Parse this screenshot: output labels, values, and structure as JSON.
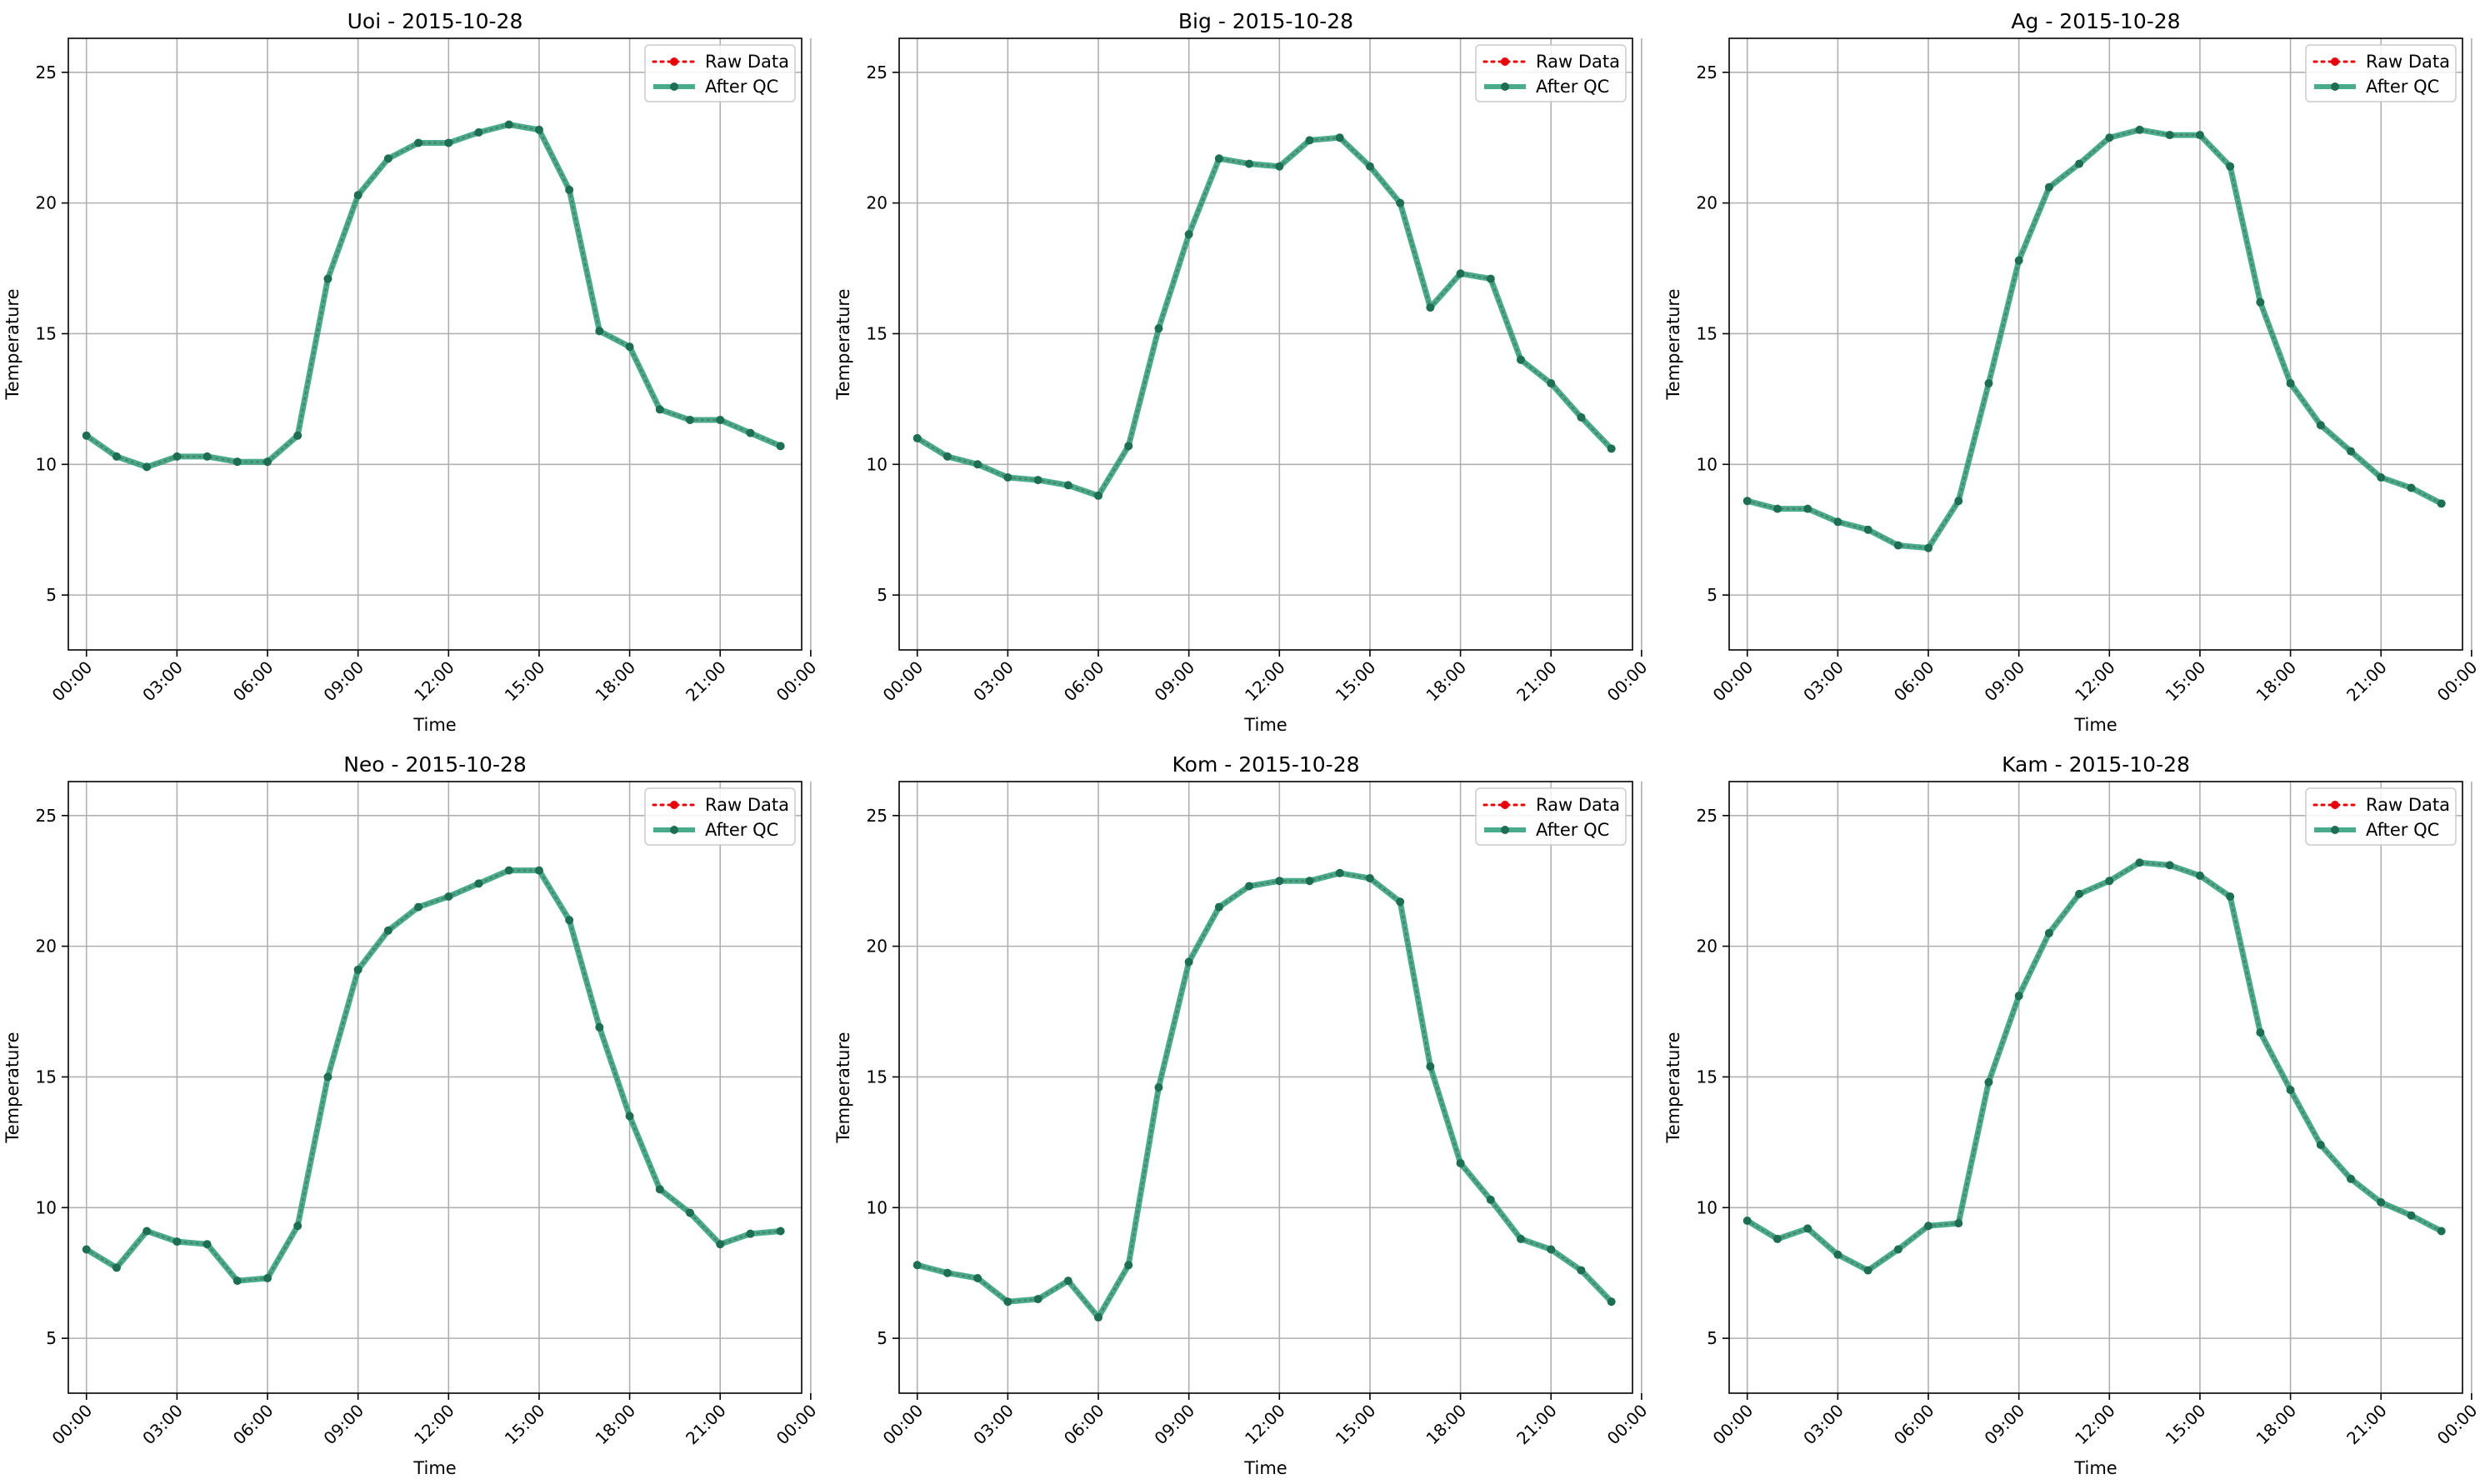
{
  "figure": {
    "colors": {
      "raw": "#e8000b",
      "after_qc": "#2a9d78",
      "marker": "#1d6e52",
      "grid": "#b0b0b0"
    }
  },
  "chart_data": [
    {
      "type": "line",
      "title": "Uoi - 2015-10-28",
      "xlabel": "Time",
      "ylabel": "Temperature",
      "ylim": [
        2.9,
        26.3
      ],
      "xlim": [
        -0.6,
        23.7
      ],
      "y_ticks": [
        5,
        10,
        15,
        20,
        25
      ],
      "x_ticks": [
        "00:00",
        "03:00",
        "06:00",
        "09:00",
        "12:00",
        "15:00",
        "18:00",
        "21:00",
        "00:00"
      ],
      "grid": true,
      "legend_position": "top-right",
      "x": [
        "00:00",
        "01:00",
        "02:00",
        "03:00",
        "04:00",
        "05:00",
        "06:00",
        "07:00",
        "08:00",
        "09:00",
        "10:00",
        "11:00",
        "12:00",
        "13:00",
        "14:00",
        "15:00",
        "16:00",
        "17:00",
        "18:00",
        "19:00",
        "20:00",
        "21:00",
        "22:00",
        "23:00"
      ],
      "series": [
        {
          "name": "Raw Data",
          "style": "dotted-marker",
          "values": [
            11.1,
            10.3,
            9.9,
            10.3,
            10.3,
            10.1,
            10.1,
            11.1,
            17.1,
            20.3,
            21.7,
            22.3,
            22.3,
            22.7,
            23.0,
            22.8,
            20.5,
            15.1,
            14.5,
            12.1,
            11.7,
            11.7,
            11.2,
            10.7
          ]
        },
        {
          "name": "After QC",
          "style": "solid-marker",
          "values": [
            11.1,
            10.3,
            9.9,
            10.3,
            10.3,
            10.1,
            10.1,
            11.1,
            17.1,
            20.3,
            21.7,
            22.3,
            22.3,
            22.7,
            23.0,
            22.8,
            20.5,
            15.1,
            14.5,
            12.1,
            11.7,
            11.7,
            11.2,
            10.7
          ]
        }
      ]
    },
    {
      "type": "line",
      "title": "Big - 2015-10-28",
      "xlabel": "Time",
      "ylabel": "Temperature",
      "ylim": [
        2.9,
        26.3
      ],
      "xlim": [
        -0.6,
        23.7
      ],
      "y_ticks": [
        5,
        10,
        15,
        20,
        25
      ],
      "x_ticks": [
        "00:00",
        "03:00",
        "06:00",
        "09:00",
        "12:00",
        "15:00",
        "18:00",
        "21:00",
        "00:00"
      ],
      "grid": true,
      "legend_position": "top-right",
      "x": [
        "00:00",
        "01:00",
        "02:00",
        "03:00",
        "04:00",
        "05:00",
        "06:00",
        "07:00",
        "08:00",
        "09:00",
        "10:00",
        "11:00",
        "12:00",
        "13:00",
        "14:00",
        "15:00",
        "16:00",
        "17:00",
        "18:00",
        "19:00",
        "20:00",
        "21:00",
        "22:00",
        "23:00"
      ],
      "series": [
        {
          "name": "Raw Data",
          "style": "dotted-marker",
          "values": [
            11.0,
            10.3,
            10.0,
            9.5,
            9.4,
            9.2,
            8.8,
            10.7,
            15.2,
            18.8,
            21.7,
            21.5,
            21.4,
            22.4,
            22.5,
            21.4,
            20.0,
            16.0,
            17.3,
            17.1,
            14.0,
            13.1,
            11.8,
            10.6
          ]
        },
        {
          "name": "After QC",
          "style": "solid-marker",
          "values": [
            11.0,
            10.3,
            10.0,
            9.5,
            9.4,
            9.2,
            8.8,
            10.7,
            15.2,
            18.8,
            21.7,
            21.5,
            21.4,
            22.4,
            22.5,
            21.4,
            20.0,
            16.0,
            17.3,
            17.1,
            14.0,
            13.1,
            11.8,
            10.6
          ]
        }
      ]
    },
    {
      "type": "line",
      "title": "Ag - 2015-10-28",
      "xlabel": "Time",
      "ylabel": "Temperature",
      "ylim": [
        2.9,
        26.3
      ],
      "xlim": [
        -0.6,
        23.7
      ],
      "y_ticks": [
        5,
        10,
        15,
        20,
        25
      ],
      "x_ticks": [
        "00:00",
        "03:00",
        "06:00",
        "09:00",
        "12:00",
        "15:00",
        "18:00",
        "21:00",
        "00:00"
      ],
      "grid": true,
      "legend_position": "top-right",
      "x": [
        "00:00",
        "01:00",
        "02:00",
        "03:00",
        "04:00",
        "05:00",
        "06:00",
        "07:00",
        "08:00",
        "09:00",
        "10:00",
        "11:00",
        "12:00",
        "13:00",
        "14:00",
        "15:00",
        "16:00",
        "17:00",
        "18:00",
        "19:00",
        "20:00",
        "21:00",
        "22:00",
        "23:00"
      ],
      "series": [
        {
          "name": "Raw Data",
          "style": "dotted-marker",
          "values": [
            8.6,
            8.3,
            8.3,
            7.8,
            7.5,
            6.9,
            6.8,
            8.6,
            13.1,
            17.8,
            20.6,
            21.5,
            22.5,
            22.8,
            22.6,
            22.6,
            21.4,
            16.2,
            13.1,
            11.5,
            10.5,
            9.5,
            9.1,
            8.5
          ]
        },
        {
          "name": "After QC",
          "style": "solid-marker",
          "values": [
            8.6,
            8.3,
            8.3,
            7.8,
            7.5,
            6.9,
            6.8,
            8.6,
            13.1,
            17.8,
            20.6,
            21.5,
            22.5,
            22.8,
            22.6,
            22.6,
            21.4,
            16.2,
            13.1,
            11.5,
            10.5,
            9.5,
            9.1,
            8.5
          ]
        }
      ]
    },
    {
      "type": "line",
      "title": "Neo - 2015-10-28",
      "xlabel": "Time",
      "ylabel": "Temperature",
      "ylim": [
        2.9,
        26.3
      ],
      "xlim": [
        -0.6,
        23.7
      ],
      "y_ticks": [
        5,
        10,
        15,
        20,
        25
      ],
      "x_ticks": [
        "00:00",
        "03:00",
        "06:00",
        "09:00",
        "12:00",
        "15:00",
        "18:00",
        "21:00",
        "00:00"
      ],
      "grid": true,
      "legend_position": "top-right",
      "x": [
        "00:00",
        "01:00",
        "02:00",
        "03:00",
        "04:00",
        "05:00",
        "06:00",
        "07:00",
        "08:00",
        "09:00",
        "10:00",
        "11:00",
        "12:00",
        "13:00",
        "14:00",
        "15:00",
        "16:00",
        "17:00",
        "18:00",
        "19:00",
        "20:00",
        "21:00",
        "22:00",
        "23:00"
      ],
      "series": [
        {
          "name": "Raw Data",
          "style": "dotted-marker",
          "values": [
            8.4,
            7.7,
            9.1,
            8.7,
            8.6,
            7.2,
            7.3,
            9.3,
            15.0,
            19.1,
            20.6,
            21.5,
            21.9,
            22.4,
            22.9,
            22.9,
            21.0,
            16.9,
            13.5,
            10.7,
            9.8,
            8.6,
            9.0,
            9.1
          ]
        },
        {
          "name": "After QC",
          "style": "solid-marker",
          "values": [
            8.4,
            7.7,
            9.1,
            8.7,
            8.6,
            7.2,
            7.3,
            9.3,
            15.0,
            19.1,
            20.6,
            21.5,
            21.9,
            22.4,
            22.9,
            22.9,
            21.0,
            16.9,
            13.5,
            10.7,
            9.8,
            8.6,
            9.0,
            9.1
          ]
        }
      ]
    },
    {
      "type": "line",
      "title": "Kom - 2015-10-28",
      "xlabel": "Time",
      "ylabel": "Temperature",
      "ylim": [
        2.9,
        26.3
      ],
      "xlim": [
        -0.6,
        23.7
      ],
      "y_ticks": [
        5,
        10,
        15,
        20,
        25
      ],
      "x_ticks": [
        "00:00",
        "03:00",
        "06:00",
        "09:00",
        "12:00",
        "15:00",
        "18:00",
        "21:00",
        "00:00"
      ],
      "grid": true,
      "legend_position": "top-right",
      "x": [
        "00:00",
        "01:00",
        "02:00",
        "03:00",
        "04:00",
        "05:00",
        "06:00",
        "07:00",
        "08:00",
        "09:00",
        "10:00",
        "11:00",
        "12:00",
        "13:00",
        "14:00",
        "15:00",
        "16:00",
        "17:00",
        "18:00",
        "19:00",
        "20:00",
        "21:00",
        "22:00",
        "23:00"
      ],
      "series": [
        {
          "name": "Raw Data",
          "style": "dotted-marker",
          "values": [
            7.8,
            7.5,
            7.3,
            6.4,
            6.5,
            7.2,
            5.8,
            7.8,
            14.6,
            19.4,
            21.5,
            22.3,
            22.5,
            22.5,
            22.8,
            22.6,
            21.7,
            15.4,
            11.7,
            10.3,
            8.8,
            8.4,
            7.6,
            6.4
          ]
        },
        {
          "name": "After QC",
          "style": "solid-marker",
          "values": [
            7.8,
            7.5,
            7.3,
            6.4,
            6.5,
            7.2,
            5.8,
            7.8,
            14.6,
            19.4,
            21.5,
            22.3,
            22.5,
            22.5,
            22.8,
            22.6,
            21.7,
            15.4,
            11.7,
            10.3,
            8.8,
            8.4,
            7.6,
            6.4
          ]
        }
      ]
    },
    {
      "type": "line",
      "title": "Kam - 2015-10-28",
      "xlabel": "Time",
      "ylabel": "Temperature",
      "ylim": [
        2.9,
        26.3
      ],
      "xlim": [
        -0.6,
        23.7
      ],
      "y_ticks": [
        5,
        10,
        15,
        20,
        25
      ],
      "x_ticks": [
        "00:00",
        "03:00",
        "06:00",
        "09:00",
        "12:00",
        "15:00",
        "18:00",
        "21:00",
        "00:00"
      ],
      "grid": true,
      "legend_position": "top-right",
      "x": [
        "00:00",
        "01:00",
        "02:00",
        "03:00",
        "04:00",
        "05:00",
        "06:00",
        "07:00",
        "08:00",
        "09:00",
        "10:00",
        "11:00",
        "12:00",
        "13:00",
        "14:00",
        "15:00",
        "16:00",
        "17:00",
        "18:00",
        "19:00",
        "20:00",
        "21:00",
        "22:00",
        "23:00"
      ],
      "series": [
        {
          "name": "Raw Data",
          "style": "dotted-marker",
          "values": [
            9.5,
            8.8,
            9.2,
            8.2,
            7.6,
            8.4,
            9.3,
            9.4,
            14.8,
            18.1,
            20.5,
            22.0,
            22.5,
            23.2,
            23.1,
            22.7,
            21.9,
            16.7,
            14.5,
            12.4,
            11.1,
            10.2,
            9.7,
            9.1
          ]
        },
        {
          "name": "After QC",
          "style": "solid-marker",
          "values": [
            9.5,
            8.8,
            9.2,
            8.2,
            7.6,
            8.4,
            9.3,
            9.4,
            14.8,
            18.1,
            20.5,
            22.0,
            22.5,
            23.2,
            23.1,
            22.7,
            21.9,
            16.7,
            14.5,
            12.4,
            11.1,
            10.2,
            9.7,
            9.1
          ]
        }
      ]
    }
  ]
}
